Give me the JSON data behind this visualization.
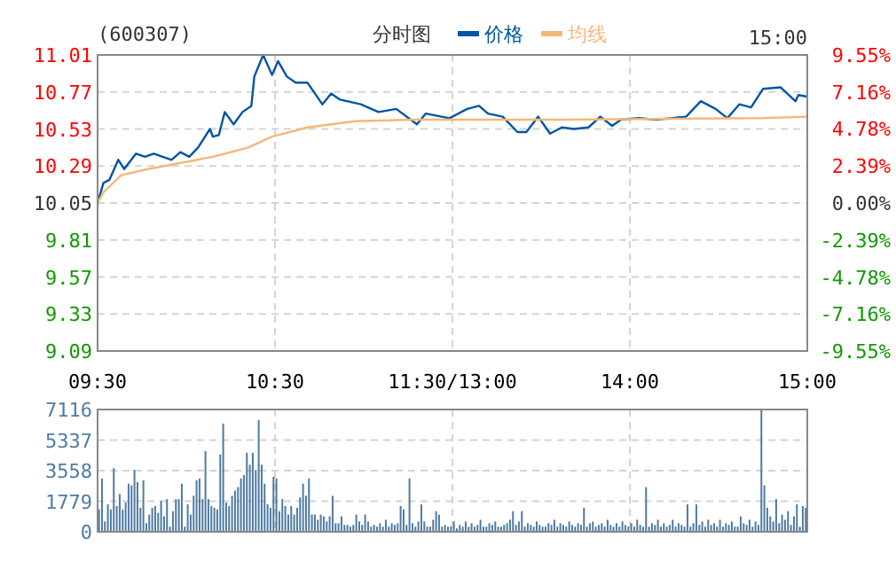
{
  "chart_data": [
    {
      "type": "line",
      "title": "(600307)",
      "subtitle": "分时图",
      "annotations": [
        "15:00"
      ],
      "legend": "top",
      "grid": true,
      "categories": [
        "09:30",
        null,
        null,
        null,
        null,
        null,
        null,
        null,
        null,
        null,
        null,
        null,
        null,
        null,
        null,
        null,
        null,
        null,
        null,
        null,
        null,
        null,
        null,
        null,
        null,
        null,
        null,
        null,
        null,
        null,
        null,
        null,
        null,
        null,
        null,
        null,
        null,
        null,
        null,
        null,
        null,
        null,
        null,
        null,
        null,
        null,
        null,
        null,
        null,
        null,
        null,
        null,
        null,
        null,
        null,
        null,
        null,
        null,
        null,
        null,
        "10:30",
        null,
        null,
        null,
        null,
        null,
        null,
        null,
        null,
        null,
        null,
        null,
        null,
        null,
        null,
        null,
        null,
        null,
        null,
        null,
        null,
        null,
        null,
        null,
        null,
        null,
        null,
        null,
        null,
        null,
        null,
        null,
        null,
        null,
        null,
        null,
        null,
        null,
        null,
        null,
        null,
        null,
        null,
        null,
        null,
        null,
        null,
        null,
        null,
        null,
        null,
        null,
        null,
        null,
        null,
        null,
        null,
        null,
        null,
        null,
        "11:30/13:00",
        null,
        null,
        null,
        null,
        null,
        null,
        null,
        null,
        null,
        null,
        null,
        null,
        null,
        null,
        null,
        null,
        null,
        null,
        null,
        null,
        null,
        null,
        null,
        null,
        null,
        null,
        null,
        null,
        null,
        null,
        null,
        null,
        null,
        null,
        null,
        null,
        null,
        null,
        null,
        null,
        null,
        null,
        null,
        null,
        null,
        null,
        null,
        null,
        null,
        null,
        null,
        null,
        null,
        null,
        null,
        null,
        null,
        null,
        null,
        "14:00",
        null,
        null,
        null,
        null,
        null,
        null,
        null,
        null,
        null,
        null,
        null,
        null,
        null,
        null,
        null,
        null,
        null,
        null,
        null,
        null,
        null,
        null,
        null,
        null,
        null,
        null,
        null,
        null,
        null,
        null,
        null,
        null,
        null,
        null,
        null,
        null,
        null,
        null,
        null,
        null,
        null,
        null,
        null,
        null,
        null,
        null,
        null,
        null,
        null,
        null,
        null,
        null,
        null,
        null,
        null,
        null,
        null,
        null,
        null,
        "15:00"
      ],
      "ylim": [
        9.09,
        11.01
      ],
      "yticks": [
        9.09,
        9.33,
        9.57,
        9.81,
        10.05,
        10.29,
        10.53,
        10.77,
        11.01
      ],
      "y2lim": [
        -9.55,
        9.55
      ],
      "y2ticks": [
        {
          "value": -9.55,
          "label": "-9.55%"
        },
        {
          "value": -7.16,
          "label": "-7.16%"
        },
        {
          "value": -4.78,
          "label": "-4.78%"
        },
        {
          "value": -2.39,
          "label": "-2.39%"
        },
        {
          "value": 0,
          "label": "0.00%"
        },
        {
          "value": 2.39,
          "label": "2.39%"
        },
        {
          "value": 4.78,
          "label": "4.78%"
        },
        {
          "value": 7.16,
          "label": "7.16%"
        },
        {
          "value": 9.55,
          "label": "9.55%"
        }
      ],
      "series": [
        {
          "name": "价格",
          "color": "#0055a5",
          "values": [
            10.05,
            null,
            10.18,
            null,
            10.2,
            null,
            null,
            10.33,
            null,
            10.27,
            null,
            null,
            null,
            10.37,
            null,
            null,
            10.35,
            null,
            null,
            10.37,
            null,
            null,
            null,
            null,
            null,
            10.33,
            null,
            null,
            10.38,
            null,
            null,
            10.35,
            null,
            null,
            10.41,
            null,
            null,
            null,
            10.53,
            10.48,
            null,
            10.49,
            null,
            10.64,
            null,
            null,
            10.56,
            null,
            null,
            10.64,
            null,
            null,
            10.68,
            10.87,
            null,
            null,
            11.01,
            null,
            null,
            10.88,
            null,
            10.97,
            null,
            null,
            10.87,
            null,
            null,
            10.83,
            null,
            null,
            null,
            10.83,
            null,
            null,
            null,
            null,
            10.69,
            null,
            null,
            10.76,
            null,
            null,
            10.72,
            null,
            null,
            null,
            null,
            null,
            null,
            10.69,
            null,
            null,
            null,
            null,
            null,
            10.64,
            null,
            null,
            null,
            null,
            null,
            10.66,
            null,
            null,
            null,
            null,
            null,
            null,
            10.56,
            null,
            null,
            10.63,
            null,
            null,
            null,
            null,
            null,
            null,
            null,
            10.6,
            null,
            null,
            null,
            null,
            null,
            10.66,
            null,
            null,
            null,
            10.68,
            null,
            null,
            10.63,
            null,
            null,
            null,
            null,
            10.61,
            null,
            null,
            null,
            null,
            10.51,
            null,
            null,
            10.51,
            null,
            null,
            null,
            10.61,
            null,
            null,
            null,
            10.5,
            null,
            null,
            null,
            10.54,
            null,
            null,
            null,
            10.53,
            null,
            null,
            null,
            null,
            10.54,
            null,
            null,
            null,
            10.61,
            null,
            null,
            null,
            10.55,
            null,
            null,
            10.59,
            null,
            null,
            null,
            null,
            null,
            10.6,
            null,
            null,
            null,
            null,
            null,
            10.59,
            null,
            null,
            null,
            null,
            10.6,
            null,
            null,
            null,
            null,
            10.61,
            null,
            null,
            null,
            null,
            10.71,
            null,
            null,
            null,
            null,
            10.66,
            null,
            null,
            null,
            10.6,
            null,
            null,
            null,
            10.69,
            null,
            null,
            null,
            10.67,
            null,
            null,
            null,
            10.79,
            null,
            null,
            null,
            null,
            null,
            10.8,
            null,
            null,
            null,
            null,
            10.71,
            10.75,
            null,
            null,
            10.74
          ]
        },
        {
          "name": "均线",
          "color": "#f5b77a",
          "values": [
            10.05,
            null,
            10.12,
            null,
            null,
            null,
            null,
            null,
            10.23,
            null,
            null,
            null,
            null,
            null,
            null,
            null,
            null,
            10.27,
            null,
            null,
            null,
            null,
            null,
            null,
            null,
            null,
            null,
            null,
            null,
            null,
            null,
            10.32,
            null,
            null,
            null,
            null,
            null,
            null,
            null,
            10.35,
            null,
            null,
            null,
            null,
            null,
            null,
            null,
            null,
            null,
            null,
            null,
            10.41,
            null,
            null,
            null,
            null,
            null,
            null,
            null,
            10.48,
            null,
            null,
            null,
            null,
            null,
            null,
            null,
            null,
            null,
            null,
            null,
            10.54,
            null,
            null,
            null,
            null,
            null,
            null,
            null,
            null,
            null,
            null,
            null,
            null,
            null,
            null,
            null,
            10.58,
            null,
            null,
            null,
            null,
            null,
            null,
            null,
            null,
            null,
            null,
            null,
            null,
            null,
            null,
            null,
            null,
            null,
            null,
            null,
            10.59,
            null,
            null,
            null,
            null,
            null,
            null,
            null,
            null,
            null,
            10.59,
            null,
            null,
            null,
            null,
            null,
            null,
            null,
            null,
            null,
            null,
            null,
            null,
            null,
            null,
            null,
            null,
            null,
            null,
            null,
            null,
            null,
            null,
            null,
            null,
            null,
            null,
            null,
            null,
            null,
            null,
            null,
            null,
            null,
            null,
            null,
            null,
            null,
            null,
            null,
            10.59,
            null,
            null,
            null,
            null,
            null,
            null,
            null,
            null,
            null,
            null,
            null,
            null,
            null,
            null,
            null,
            null,
            null,
            null,
            null,
            null,
            null,
            null,
            null,
            null,
            null,
            null,
            null,
            null,
            null,
            null,
            null,
            null,
            null,
            null,
            null,
            null,
            null,
            null,
            null,
            null,
            null,
            null,
            null,
            null,
            null,
            null,
            null,
            null,
            null,
            null,
            null,
            null,
            null,
            null,
            null,
            null,
            null,
            null,
            null,
            null,
            null,
            null,
            null,
            null,
            null,
            null,
            null,
            10.6,
            null,
            null,
            null,
            null,
            null,
            null,
            null,
            null,
            null,
            null,
            null,
            null,
            null,
            null,
            10.61
          ]
        }
      ]
    },
    {
      "type": "bar",
      "tick_labels": "y",
      "grid": true,
      "ylim": [
        0,
        7116
      ],
      "yticks": [
        0,
        1779,
        3558,
        5337,
        7116
      ],
      "categories": [
        null,
        null,
        null,
        null,
        null,
        null,
        null,
        null,
        null,
        null,
        null,
        null,
        null,
        null,
        null,
        null,
        null,
        null,
        null,
        null,
        null,
        null,
        null,
        null,
        null,
        null,
        null,
        null,
        null,
        null,
        null,
        null,
        null,
        null,
        null,
        null,
        null,
        null,
        null,
        null,
        null,
        null,
        null,
        null,
        null,
        null,
        null,
        null,
        null,
        null,
        null,
        null,
        null,
        null,
        null,
        null,
        null,
        null,
        null,
        null,
        null,
        null,
        null,
        null,
        null,
        null,
        null,
        null,
        null,
        null,
        null,
        null,
        null,
        null,
        null,
        null,
        null,
        null,
        null,
        null,
        null,
        null,
        null,
        null,
        null,
        null,
        null,
        null,
        null,
        null,
        null,
        null,
        null,
        null,
        null,
        null,
        null,
        null,
        null,
        null,
        null,
        null,
        null,
        null,
        null,
        null,
        null,
        null,
        null,
        null,
        null,
        null,
        null,
        null,
        null,
        null,
        null,
        null,
        null,
        null,
        null,
        null,
        null,
        null,
        null,
        null,
        null,
        null,
        null,
        null,
        null,
        null,
        null,
        null,
        null,
        null,
        null,
        null,
        null,
        null,
        null,
        null,
        null,
        null,
        null,
        null,
        null,
        null,
        null,
        null,
        null,
        null,
        null,
        null,
        null,
        null,
        null,
        null,
        null,
        null,
        null,
        null,
        null,
        null,
        null,
        null,
        null,
        null,
        null,
        null,
        null,
        null,
        null,
        null,
        null,
        null,
        null,
        null,
        null,
        null,
        null,
        null,
        null,
        null,
        null,
        null,
        null,
        null,
        null,
        null,
        null,
        null,
        null,
        null,
        null,
        null,
        null,
        null,
        null,
        null,
        null,
        null,
        null,
        null,
        null,
        null,
        null,
        null,
        null,
        null,
        null,
        null,
        null,
        null,
        null,
        null,
        null,
        null,
        null,
        null,
        null,
        null,
        null,
        null,
        null,
        null,
        null,
        null,
        null,
        null,
        null,
        null,
        null,
        null,
        null,
        null,
        null,
        null,
        null,
        null,
        null
      ],
      "series": [
        {
          "color": "#4f7ba3",
          "values": [
            1300,
            3100,
            600,
            1600,
            1300,
            3700,
            1500,
            2200,
            1300,
            1700,
            2800,
            2700,
            3600,
            2900,
            1400,
            3000,
            500,
            1000,
            1400,
            1500,
            1100,
            1800,
            900,
            1900,
            300,
            1200,
            1900,
            1900,
            2800,
            300,
            1600,
            1000,
            2100,
            3000,
            3100,
            1900,
            4700,
            1900,
            1500,
            1400,
            1300,
            4500,
            6300,
            1700,
            1500,
            2100,
            2400,
            2600,
            3100,
            3300,
            4600,
            3900,
            4600,
            3600,
            6500,
            3900,
            2800,
            1600,
            1400,
            3200,
            3100,
            1200,
            1900,
            1500,
            1000,
            1500,
            1000,
            1400,
            2000,
            2800,
            2100,
            3100,
            1000,
            1000,
            700,
            1000,
            900,
            600,
            900,
            2100,
            500,
            500,
            900,
            400,
            400,
            300,
            400,
            1000,
            600,
            400,
            1000,
            600,
            300,
            400,
            300,
            500,
            300,
            700,
            300,
            500,
            400,
            500,
            1500,
            1300,
            400,
            3100,
            500,
            300,
            600,
            1600,
            600,
            300,
            300,
            700,
            1200,
            1000,
            300,
            400,
            300,
            300,
            600,
            200,
            400,
            300,
            600,
            300,
            500,
            300,
            400,
            700,
            300,
            300,
            500,
            400,
            600,
            300,
            300,
            400,
            500,
            700,
            1200,
            400,
            600,
            1200,
            300,
            500,
            400,
            300,
            600,
            400,
            300,
            300,
            500,
            400,
            700,
            300,
            500,
            400,
            300,
            600,
            400,
            300,
            500,
            400,
            1400,
            300,
            500,
            600,
            300,
            400,
            500,
            300,
            700,
            400,
            300,
            500,
            300,
            600,
            400,
            300,
            500,
            300,
            700,
            400,
            300,
            2600,
            300,
            500,
            400,
            700,
            300,
            500,
            300,
            400,
            700,
            300,
            500,
            400,
            300,
            1600,
            300,
            500,
            1600,
            400,
            600,
            300,
            700,
            400,
            500,
            300,
            700,
            300,
            500,
            400,
            600,
            300,
            300,
            900,
            500,
            400,
            700,
            300,
            600,
            400,
            7100,
            2700,
            1400,
            900,
            600,
            1900,
            500,
            1000,
            700,
            1200,
            400,
            900,
            1600,
            300,
            1500,
            1400,
            null
          ]
        }
      ]
    }
  ]
}
